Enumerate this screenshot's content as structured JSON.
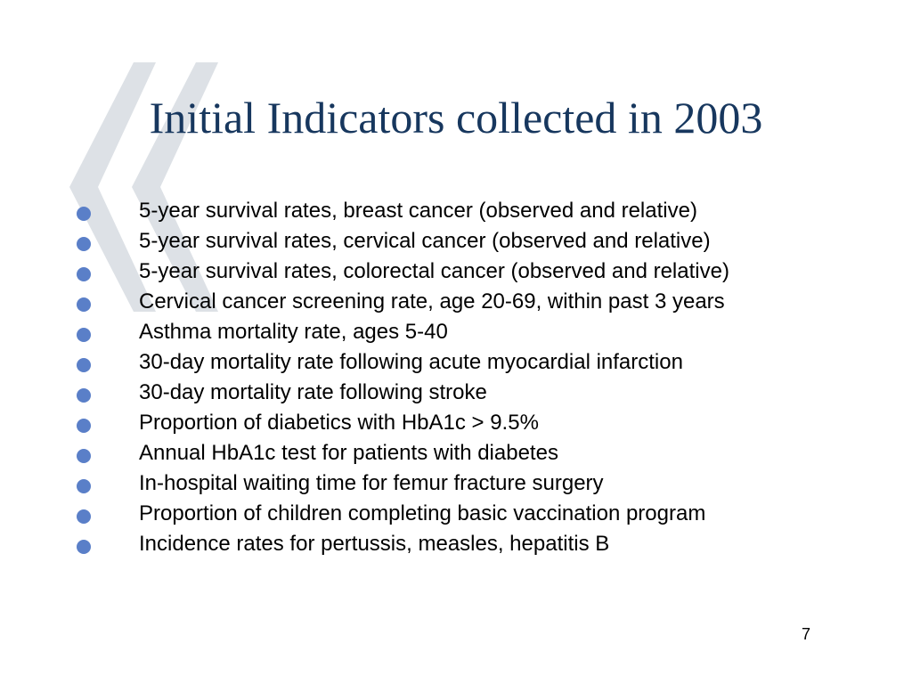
{
  "slide": {
    "title": "Initial Indicators collected in 2003",
    "bullets": [
      "5-year survival rates, breast cancer (observed and relative)",
      "5-year survival rates, cervical cancer (observed and relative)",
      "5-year survival rates, colorectal cancer (observed and relative)",
      "Cervical cancer screening rate, age 20-69, within past 3 years",
      "Asthma mortality rate, ages 5-40",
      "30-day mortality rate following acute myocardial infarction",
      "30-day mortality rate following stroke",
      "Proportion of diabetics with HbA1c > 9.5%",
      "Annual HbA1c test for patients with diabetes",
      "In-hospital waiting time for femur fracture surgery",
      "Proportion of children completing basic vaccination program",
      "Incidence rates for pertussis, measles, hepatitis B"
    ],
    "page_number": "7"
  },
  "colors": {
    "title": "#17375e",
    "bullet": "#5a7fc8",
    "watermark": "#dde1e6"
  },
  "icons": {
    "watermark": "large-quote-marks-icon",
    "bullet": "circle-bullet-icon"
  }
}
